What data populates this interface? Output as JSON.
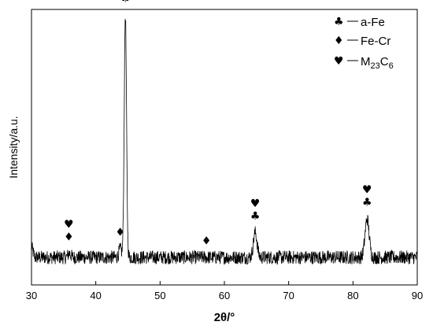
{
  "chart_data": {
    "type": "line",
    "xlabel": "2θ/°",
    "ylabel": "Intensity/a.u.",
    "xlim": [
      30,
      90
    ],
    "ylim": [
      0,
      100
    ],
    "x_ticks": [
      30,
      40,
      50,
      60,
      70,
      80,
      90
    ],
    "y_ticks_shown": false,
    "grid": false,
    "legend": {
      "placement": "top-right",
      "entries": [
        {
          "symbol": "♣",
          "label": "a-Fe"
        },
        {
          "symbol": "♦",
          "label": "Fe-Cr"
        },
        {
          "symbol": "♥",
          "label": "M23C6",
          "label_main": "M",
          "sub1": "23",
          "mid": "C",
          "sub2": "6"
        }
      ]
    },
    "series": [
      {
        "baseline": 10,
        "noise_amplitude": 2.5,
        "peaks": [
          {
            "x": 44.6,
            "height": 88,
            "width": 0.25
          },
          {
            "x": 64.8,
            "height": 9,
            "width": 0.4
          },
          {
            "x": 82.2,
            "height": 14,
            "width": 0.45
          },
          {
            "x": 43.8,
            "height": 3,
            "width": 0.3
          },
          {
            "x": 35.9,
            "height": 1.5,
            "width": 0.3
          }
        ]
      }
    ],
    "annotations": [
      {
        "x": 35.8,
        "symbols": [
          "♥",
          "♦"
        ]
      },
      {
        "x": 43.8,
        "symbols": [
          "♦"
        ]
      },
      {
        "x": 44.6,
        "symbols": [
          "♥",
          "♣"
        ]
      },
      {
        "x": 57.2,
        "symbols": [
          "♦"
        ]
      },
      {
        "x": 64.8,
        "symbols": [
          "♥",
          "♣"
        ]
      },
      {
        "x": 82.2,
        "symbols": [
          "♥",
          "♣"
        ]
      }
    ]
  }
}
